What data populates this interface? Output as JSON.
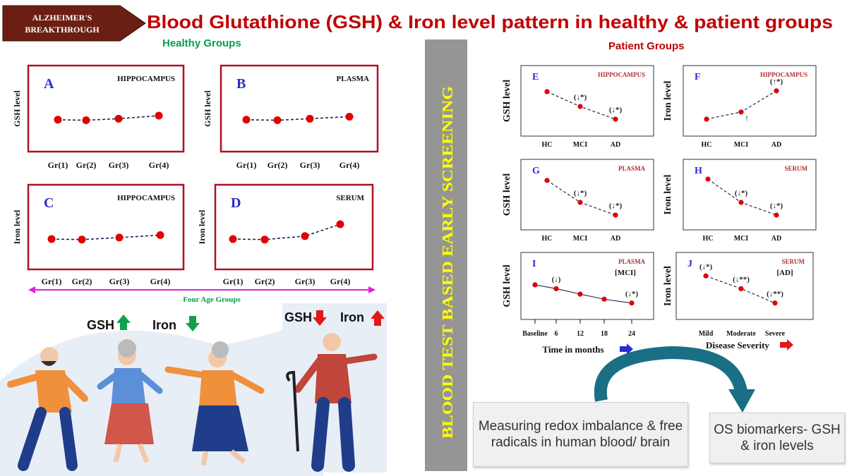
{
  "badge": "ALZHEIMER'S BREAKTHROUGH",
  "title": "Blood Glutathione (GSH) & Iron level pattern in healthy & patient groups",
  "healthy_heading": "Healthy Groups",
  "patient_heading": "Patient Groups",
  "vertical_banner": "BLOOD TEST BASED EARLY SCREENING",
  "age_groups_label": "Four Age Groups",
  "healthy_legend": {
    "gsh": "GSH",
    "iron": "Iron"
  },
  "patient_legend": {
    "gsh": "GSH",
    "iron": "Iron"
  },
  "textbox_left": "Measuring redox imbalance & free radicals in human blood/ brain",
  "textbox_right": "OS biomarkers- GSH & iron levels",
  "colors": {
    "title": "#c00000",
    "green_heading": "#00a04a",
    "frame": "#b01020",
    "point": "#e00000",
    "line": "#1a2a55",
    "letter": "#2b2bd0",
    "magenta": "#e020e0",
    "banner_text": "#ffff00",
    "banner_bg": "#959595"
  },
  "chart_data": [
    {
      "id": "A",
      "type": "line",
      "panel_letter": "A",
      "region": "HIPPOCAMPUS",
      "ylabel": "GSH level",
      "categories": [
        "Gr(1)",
        "Gr(2)",
        "Gr(3)",
        "Gr(4)"
      ],
      "values": [
        0.42,
        0.41,
        0.44,
        0.5
      ]
    },
    {
      "id": "B",
      "type": "line",
      "panel_letter": "B",
      "region": "PLASMA",
      "ylabel": "GSH level",
      "categories": [
        "Gr(1)",
        "Gr(2)",
        "Gr(3)",
        "Gr(4)"
      ],
      "values": [
        0.42,
        0.41,
        0.44,
        0.48
      ]
    },
    {
      "id": "C",
      "type": "line",
      "panel_letter": "C",
      "region": "HIPPOCAMPUS",
      "ylabel": "Iron level",
      "categories": [
        "Gr(1)",
        "Gr(2)",
        "Gr(3)",
        "Gr(4)"
      ],
      "values": [
        0.4,
        0.39,
        0.43,
        0.48
      ]
    },
    {
      "id": "D",
      "type": "line",
      "panel_letter": "D",
      "region": "SERUM",
      "ylabel": "Iron level",
      "categories": [
        "Gr(1)",
        "Gr(2)",
        "Gr(3)",
        "Gr(4)"
      ],
      "values": [
        0.4,
        0.39,
        0.46,
        0.7
      ]
    },
    {
      "id": "E",
      "type": "line",
      "panel_letter": "E",
      "region": "HIPPOCAMPUS",
      "ylabel": "GSH level",
      "categories": [
        "HC",
        "MCI",
        "AD"
      ],
      "values": [
        0.8,
        0.45,
        0.15
      ],
      "annotations": [
        "",
        "(↓*)",
        "(↓*)"
      ]
    },
    {
      "id": "F",
      "type": "line",
      "panel_letter": "F",
      "region": "HIPPOCAMPUS",
      "ylabel": "Iron level",
      "categories": [
        "HC",
        "MCI",
        "AD"
      ],
      "values": [
        0.15,
        0.32,
        0.82
      ],
      "annotations": [
        "",
        "↑",
        "(↑*)"
      ]
    },
    {
      "id": "G",
      "type": "line",
      "panel_letter": "G",
      "region": "PLASMA",
      "ylabel": "GSH level",
      "categories": [
        "HC",
        "MCI",
        "AD"
      ],
      "values": [
        0.92,
        0.4,
        0.1
      ],
      "annotations": [
        "",
        "(↓*)",
        "(↓*)"
      ]
    },
    {
      "id": "H",
      "type": "line",
      "panel_letter": "H",
      "region": "SERUM",
      "ylabel": "Iron level",
      "categories": [
        "HC",
        "MCI",
        "AD"
      ],
      "values": [
        0.95,
        0.4,
        0.1
      ],
      "annotations": [
        "",
        "(↓*)",
        "(↓*)"
      ]
    },
    {
      "id": "I",
      "type": "line",
      "panel_letter": "I",
      "region": "PLASMA",
      "subtitle": "[MCI]",
      "ylabel": "GSH level",
      "xlabel": "Time in months",
      "categories": [
        "Baseline",
        "6",
        "12",
        "18",
        "24"
      ],
      "values": [
        0.62,
        0.52,
        0.38,
        0.25,
        0.15
      ],
      "annotations": [
        "",
        "(↓)",
        "",
        "",
        "(↓*)"
      ]
    },
    {
      "id": "J",
      "type": "line",
      "panel_letter": "J",
      "region": "SERUM",
      "subtitle": "[AD]",
      "ylabel": "Iron level",
      "xlabel": "Disease Severity",
      "categories": [
        "Mild",
        "Moderate",
        "Severe"
      ],
      "values": [
        0.85,
        0.52,
        0.15
      ],
      "annotations": [
        "(↓*)",
        "(↓**)",
        "(↓**)"
      ]
    }
  ]
}
